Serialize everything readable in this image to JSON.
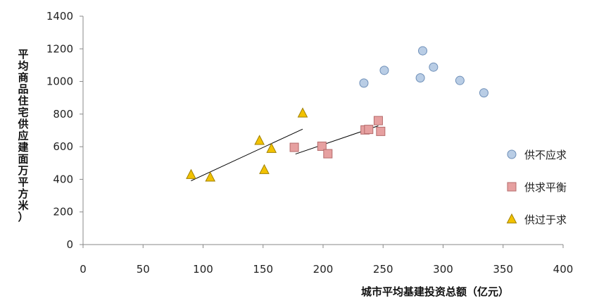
{
  "chart_data": {
    "type": "scatter",
    "title": "",
    "xlabel": "城市平均基建投资总额（亿元）",
    "ylabel": "平均商品住宅供应建面万平方米）",
    "xlim": [
      0,
      400
    ],
    "ylim": [
      0,
      1400
    ],
    "x_ticks": [
      "0",
      "50",
      "100",
      "150",
      "200",
      "250",
      "300",
      "350",
      "400"
    ],
    "y_ticks": [
      "0",
      "200",
      "400",
      "600",
      "800",
      "1000",
      "1200",
      "1400"
    ],
    "grid": false,
    "legend_position": "right",
    "series": [
      {
        "name": "供不应求",
        "marker": "circle",
        "color": "#b9cde5",
        "stroke": "#6e8fb8",
        "points": [
          [
            234,
            990
          ],
          [
            251,
            1068
          ],
          [
            281,
            1022
          ],
          [
            283,
            1188
          ],
          [
            292,
            1088
          ],
          [
            314,
            1006
          ],
          [
            334,
            930
          ]
        ]
      },
      {
        "name": "供求平衡",
        "marker": "square",
        "color": "#e6a0a0",
        "stroke": "#b56b6b",
        "points": [
          [
            176,
            596
          ],
          [
            199,
            603
          ],
          [
            204,
            557
          ],
          [
            235,
            703
          ],
          [
            238,
            706
          ],
          [
            246,
            760
          ],
          [
            248,
            694
          ]
        ],
        "trendline": [
          [
            177,
            555
          ],
          [
            246,
            728
          ]
        ]
      },
      {
        "name": "供过于求",
        "marker": "triangle",
        "color": "#f2c200",
        "stroke": "#a08000",
        "points": [
          [
            90,
            428
          ],
          [
            106,
            412
          ],
          [
            147,
            637
          ],
          [
            151,
            458
          ],
          [
            157,
            588
          ],
          [
            183,
            805
          ]
        ],
        "trendline": [
          [
            90,
            391
          ],
          [
            183,
            708
          ]
        ]
      }
    ]
  }
}
